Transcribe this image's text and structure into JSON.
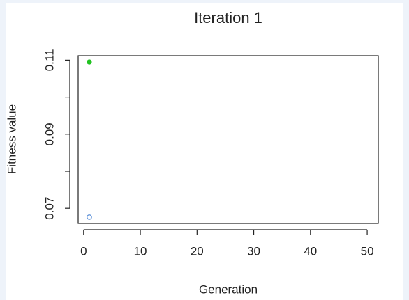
{
  "chart_data": {
    "type": "scatter",
    "title": "Iteration 1",
    "xlabel": "Generation",
    "ylabel": "Fitness value",
    "x": [
      1
    ],
    "series": [
      {
        "color": "#22c322",
        "marker": "filled",
        "values": [
          0.1095
        ]
      },
      {
        "color": "#5a8fd8",
        "marker": "open",
        "values": [
          0.0676
        ]
      }
    ],
    "xlim": [
      -0.96,
      51.96
    ],
    "xticks": [
      0,
      10,
      20,
      30,
      40,
      50
    ],
    "ylim": [
      0.0659,
      0.1112
    ],
    "yticks": [
      0.07,
      0.09,
      0.11
    ],
    "yticks_unlabeled": [
      0.08,
      0.1
    ]
  }
}
